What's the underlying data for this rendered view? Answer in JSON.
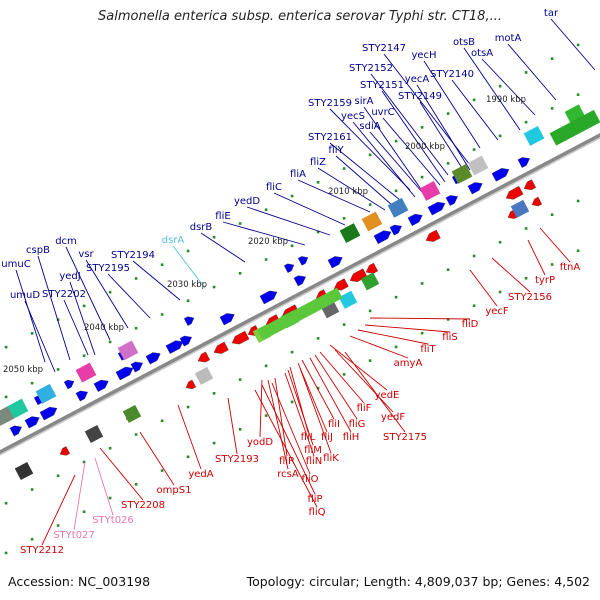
{
  "header": {
    "title": "Salmonella enterica subsp. enterica serovar Typhi str. CT18,..."
  },
  "footer": {
    "accession": "Accession: NC_003198",
    "topology": "Topology: circular; Length: 4,809,037 bp; Genes: 4,502"
  },
  "colors": {
    "forward_gene": "#0000ee",
    "reverse_gene": "#ee0000",
    "forward_label": "#00008b",
    "reverse_label": "#cc0000",
    "rna_label": "#ee77aa",
    "pseudo_label": "#55bbdd",
    "backbone": "#888888"
  },
  "scale": {
    "unit": "kbp",
    "ticks": [
      "1990 kbp",
      "2000 kbp",
      "2010 kbp",
      "2020 kbp",
      "2030 kbp",
      "2040 kbp",
      "2050 kbp"
    ]
  },
  "forward_labels": [
    "tar",
    "motA",
    "otsA",
    "otsB",
    "yecH",
    "STY2147",
    "STY2140",
    "yecA",
    "STY2152",
    "STY2151",
    "STY2149",
    "uvrC",
    "sirA",
    "STY2159",
    "yecS",
    "sdiA",
    "STY2161",
    "fliY",
    "fliZ",
    "fliA",
    "fliC",
    "yedD",
    "fliE",
    "dsrB",
    "dsrA",
    "STY2194",
    "STY2195",
    "vsr",
    "dcm",
    "yedJ",
    "cspB",
    "umuC",
    "STY2202",
    "umuD"
  ],
  "reverse_labels": [
    "ftnA",
    "tyrP",
    "STY2156",
    "yecF",
    "fliD",
    "fliS",
    "fliT",
    "amyA",
    "yedE",
    "yedF",
    "STY2175",
    "fliF",
    "fliG",
    "fliH",
    "fliI",
    "fliJ",
    "fliK",
    "fliL",
    "fliM",
    "fliN",
    "yodD",
    "fliR",
    "rcsA",
    "fliO",
    "fliP",
    "fliQ",
    "STY2193",
    "yedA",
    "ompS1",
    "STY2208",
    "STYt026",
    "STYt027",
    "STY2212"
  ]
}
